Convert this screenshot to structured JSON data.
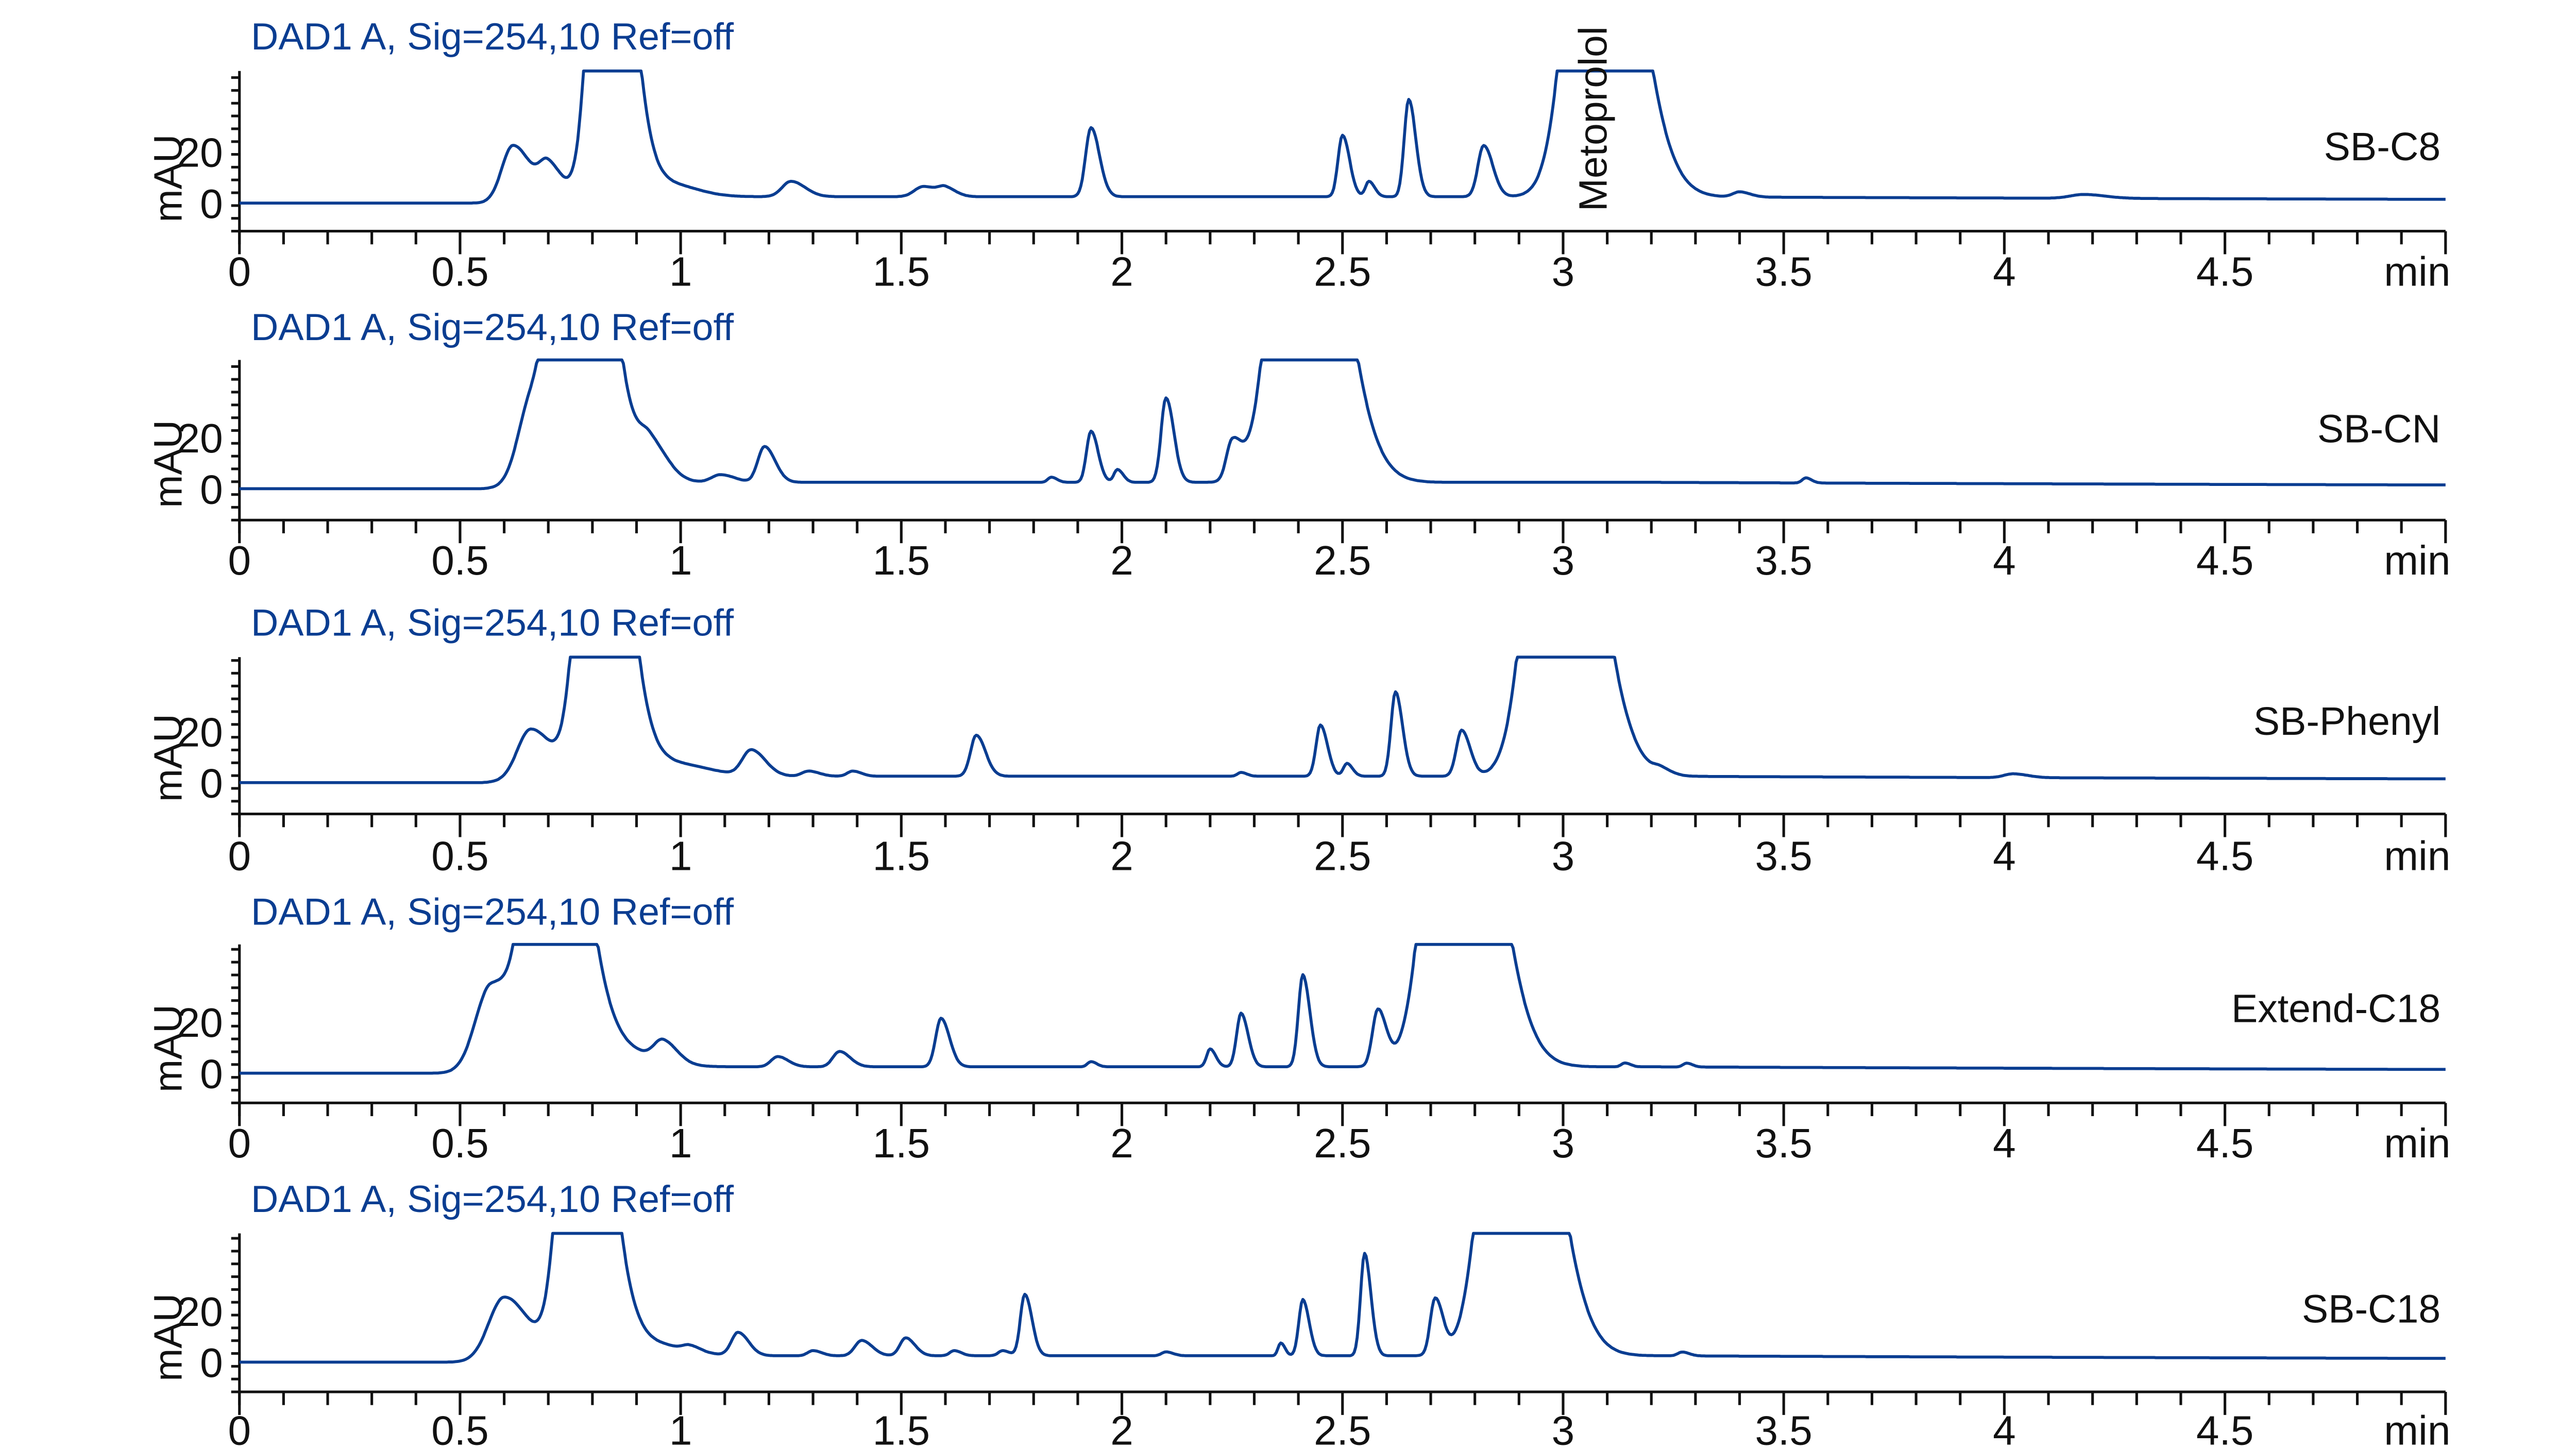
{
  "chart_data": [
    {
      "type": "line",
      "title": "DAD1 A, Sig=254,10 Ref=off",
      "column": "SB-C8",
      "xlabel": "min",
      "ylabel": "mAU",
      "xlim": [
        0,
        5
      ],
      "xticks": [
        "0",
        "0.5",
        "1",
        "1.5",
        "2",
        "2.5",
        "3",
        "3.5",
        "4",
        "4.5"
      ],
      "yticks": [
        "0",
        "20"
      ],
      "ylim": [
        -10,
        50
      ],
      "annotation": {
        "text": "Metoprolol",
        "x": 3.07
      },
      "baseline": 0,
      "baseline_end": 3,
      "peaks": [
        [
          0.62,
          22,
          0.025
        ],
        [
          0.7,
          13,
          0.02
        ],
        [
          0.83,
          200,
          0.03
        ],
        [
          0.97,
          5,
          0.04
        ],
        [
          1.25,
          6,
          0.02
        ],
        [
          1.55,
          4,
          0.02
        ],
        [
          1.6,
          3,
          0.015
        ],
        [
          1.93,
          27,
          0.012
        ],
        [
          2.5,
          24,
          0.01
        ],
        [
          2.56,
          6,
          0.008
        ],
        [
          2.65,
          38,
          0.01
        ],
        [
          2.82,
          20,
          0.013
        ],
        [
          3.07,
          200,
          0.05
        ],
        [
          3.4,
          2,
          0.015
        ],
        [
          4.18,
          1.5,
          0.03
        ]
      ]
    },
    {
      "type": "line",
      "title": "DAD1 A, Sig=254,10 Ref=off",
      "column": "SB-CN",
      "xlabel": "min",
      "ylabel": "mAU",
      "xlim": [
        0,
        5
      ],
      "xticks": [
        "0",
        "0.5",
        "1",
        "1.5",
        "2",
        "2.5",
        "3",
        "3.5",
        "4",
        "4.5"
      ],
      "yticks": [
        "0",
        "20"
      ],
      "ylim": [
        -10,
        50
      ],
      "baseline": 0,
      "baseline_end": 2,
      "peaks": [
        [
          0.66,
          30,
          0.03
        ],
        [
          0.76,
          200,
          0.04
        ],
        [
          0.93,
          14,
          0.025
        ],
        [
          1.09,
          3,
          0.02
        ],
        [
          1.19,
          14,
          0.015
        ],
        [
          1.84,
          2,
          0.008
        ],
        [
          1.93,
          20,
          0.01
        ],
        [
          1.99,
          5,
          0.008
        ],
        [
          2.1,
          33,
          0.011
        ],
        [
          2.25,
          15,
          0.013
        ],
        [
          2.4,
          200,
          0.05
        ],
        [
          3.55,
          2,
          0.008
        ]
      ]
    },
    {
      "type": "line",
      "title": "DAD1 A, Sig=254,10 Ref=off",
      "column": "SB-Phenyl",
      "xlabel": "min",
      "ylabel": "mAU",
      "xlim": [
        0,
        5
      ],
      "xticks": [
        "0",
        "0.5",
        "1",
        "1.5",
        "2",
        "2.5",
        "3",
        "3.5",
        "4",
        "4.5"
      ],
      "yticks": [
        "0",
        "20"
      ],
      "ylim": [
        -10,
        50
      ],
      "baseline": 0,
      "baseline_end": 2,
      "peaks": [
        [
          0.66,
          20,
          0.03
        ],
        [
          0.81,
          200,
          0.035
        ],
        [
          0.98,
          5,
          0.05
        ],
        [
          1.16,
          10,
          0.02
        ],
        [
          1.29,
          2,
          0.015
        ],
        [
          1.39,
          2,
          0.012
        ],
        [
          1.67,
          16,
          0.013
        ],
        [
          2.27,
          1.5,
          0.008
        ],
        [
          2.45,
          20,
          0.01
        ],
        [
          2.51,
          5,
          0.008
        ],
        [
          2.62,
          33,
          0.01
        ],
        [
          2.77,
          18,
          0.012
        ],
        [
          2.98,
          200,
          0.05
        ],
        [
          3.22,
          2,
          0.015
        ],
        [
          4.02,
          1.5,
          0.02
        ]
      ]
    },
    {
      "type": "line",
      "title": "DAD1 A, Sig=254,10 Ref=off",
      "column": "Extend-C18",
      "xlabel": "min",
      "ylabel": "mAU",
      "xlim": [
        0,
        5
      ],
      "xticks": [
        "0",
        "0.5",
        "1",
        "1.5",
        "2",
        "2.5",
        "3",
        "3.5",
        "4",
        "4.5"
      ],
      "yticks": [
        "0",
        "20"
      ],
      "ylim": [
        -10,
        50
      ],
      "baseline": 0,
      "baseline_end": 2,
      "peaks": [
        [
          0.57,
          34,
          0.035
        ],
        [
          0.7,
          200,
          0.04
        ],
        [
          0.85,
          7,
          0.05
        ],
        [
          0.96,
          8,
          0.02
        ],
        [
          1.22,
          4,
          0.015
        ],
        [
          1.36,
          6,
          0.015
        ],
        [
          1.59,
          19,
          0.012
        ],
        [
          1.93,
          2,
          0.008
        ],
        [
          2.2,
          7,
          0.008
        ],
        [
          2.27,
          21,
          0.01
        ],
        [
          2.41,
          36,
          0.01
        ],
        [
          2.58,
          22,
          0.012
        ],
        [
          2.75,
          200,
          0.05
        ],
        [
          3.14,
          1.5,
          0.008
        ],
        [
          3.28,
          1.5,
          0.008
        ]
      ]
    },
    {
      "type": "line",
      "title": "DAD1 A, Sig=254,10 Ref=off",
      "column": "SB-C18",
      "xlabel": "min",
      "ylabel": "mAU",
      "xlim": [
        0,
        5
      ],
      "xticks": [
        "0",
        "0.5",
        "1",
        "1.5",
        "2",
        "2.5",
        "3",
        "3.5",
        "4",
        "4.5"
      ],
      "yticks": [
        "0",
        "20"
      ],
      "ylim": [
        -10,
        50
      ],
      "baseline": 0,
      "baseline_end": 2,
      "peaks": [
        [
          0.6,
          25,
          0.035
        ],
        [
          0.77,
          200,
          0.035
        ],
        [
          0.92,
          5,
          0.05
        ],
        [
          1.02,
          2,
          0.015
        ],
        [
          1.13,
          9,
          0.015
        ],
        [
          1.3,
          2,
          0.012
        ],
        [
          1.41,
          6,
          0.015
        ],
        [
          1.51,
          7,
          0.013
        ],
        [
          1.62,
          2,
          0.01
        ],
        [
          1.73,
          2,
          0.01
        ],
        [
          1.78,
          24,
          0.01
        ],
        [
          2.1,
          1.5,
          0.01
        ],
        [
          2.36,
          5,
          0.006
        ],
        [
          2.41,
          22,
          0.009
        ],
        [
          2.55,
          40,
          0.009
        ],
        [
          2.71,
          22,
          0.011
        ],
        [
          2.88,
          200,
          0.05
        ],
        [
          3.27,
          1.5,
          0.01
        ]
      ]
    }
  ],
  "panels": [
    {
      "title": "DAD1 A, Sig=254,10 Ref=off",
      "label": "SB-C8",
      "ylabel": "mAU",
      "unit": "min",
      "y_tick_0": "0",
      "y_tick_20": "20"
    },
    {
      "title": "DAD1 A, Sig=254,10 Ref=off",
      "label": "SB-CN",
      "ylabel": "mAU",
      "unit": "min",
      "y_tick_0": "0",
      "y_tick_20": "20"
    },
    {
      "title": "DAD1 A, Sig=254,10 Ref=off",
      "label": "SB-Phenyl",
      "ylabel": "mAU",
      "unit": "min",
      "y_tick_0": "0",
      "y_tick_20": "20"
    },
    {
      "title": "DAD1 A, Sig=254,10 Ref=off",
      "label": "Extend-C18",
      "ylabel": "mAU",
      "unit": "min",
      "y_tick_0": "0",
      "y_tick_20": "20"
    },
    {
      "title": "DAD1 A, Sig=254,10 Ref=off",
      "label": "SB-C18",
      "ylabel": "mAU",
      "unit": "min",
      "y_tick_0": "0",
      "y_tick_20": "20"
    }
  ],
  "annotation": {
    "text": "Metoprolol"
  },
  "x_tick_labels": [
    "0",
    "0.5",
    "1",
    "1.5",
    "2",
    "2.5",
    "3",
    "3.5",
    "4",
    "4.5"
  ],
  "colors": {
    "trace": "#0a3d91",
    "title": "#0a3d91",
    "axis": "#111111"
  }
}
